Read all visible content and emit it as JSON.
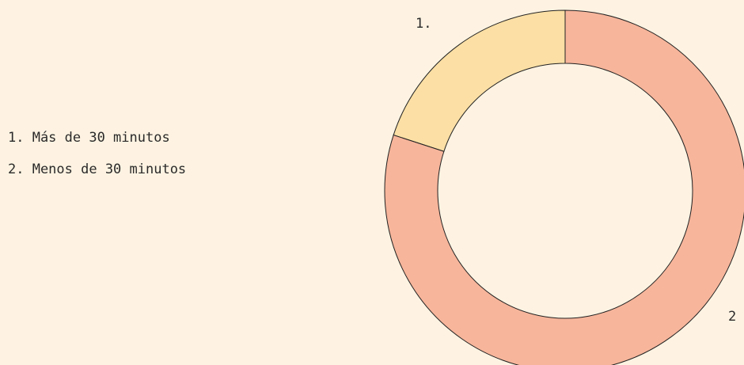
{
  "chart_data": {
    "type": "donut",
    "categories": [
      "1. Más de 30 minutos",
      "2. Menos de 30 minutos"
    ],
    "values": [
      20,
      80
    ],
    "value_labels": [
      "1.",
      "2"
    ],
    "colors": [
      "#fbdfa4",
      "#f7b59b"
    ],
    "legend": "left"
  }
}
